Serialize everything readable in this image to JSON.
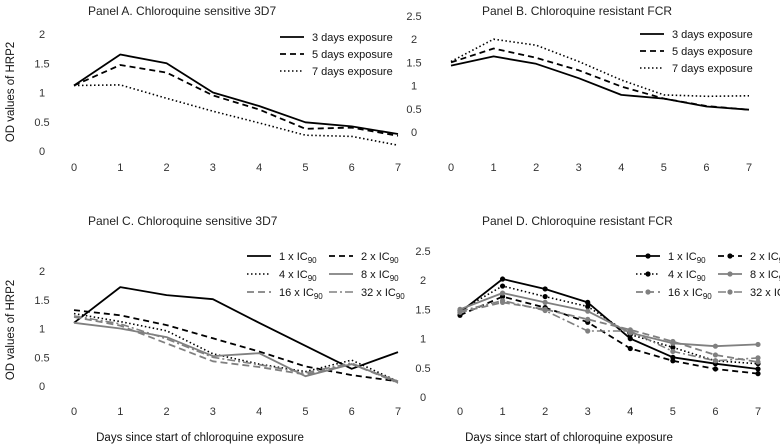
{
  "y_axis_label": "OD values of HRP2",
  "x_axis_label": "Days since start of chloroquine exposure",
  "ic_unit_prefix": " x IC",
  "ic_unit_sub": "90",
  "chart_data": [
    {
      "type": "line",
      "title": "Panel A. Chloroquine sensitive 3D7",
      "xlabel": "",
      "ylabel": "OD values of HRP2",
      "x": [
        0,
        1,
        2,
        3,
        4,
        5,
        6,
        7
      ],
      "ylim": [
        0,
        2
      ],
      "yticks": [
        "0",
        "0.5",
        "1",
        "1.5",
        "2"
      ],
      "series": [
        {
          "name": "3 days exposure",
          "style": "solid",
          "values": [
            1.12,
            1.65,
            1.5,
            1.0,
            0.77,
            0.49,
            0.42,
            0.29
          ]
        },
        {
          "name": "5 days exposure",
          "style": "dash",
          "values": [
            1.12,
            1.47,
            1.34,
            0.95,
            0.71,
            0.38,
            0.4,
            0.26
          ]
        },
        {
          "name": "7 days exposure",
          "style": "dot",
          "values": [
            1.12,
            1.13,
            0.9,
            0.68,
            0.48,
            0.27,
            0.25,
            0.1
          ]
        }
      ]
    },
    {
      "type": "line",
      "title": "Panel B. Chloroquine resistant FCR",
      "xlabel": "",
      "ylabel": "",
      "x": [
        0,
        1,
        2,
        3,
        4,
        5,
        6,
        7
      ],
      "ylim": [
        0,
        2.5
      ],
      "yticks": [
        "0",
        "0.5",
        "1",
        "1.5",
        "2",
        "2.5"
      ],
      "series": [
        {
          "name": "3 days exposure",
          "style": "solid",
          "values": [
            1.43,
            1.63,
            1.47,
            1.16,
            0.8,
            0.72,
            0.55,
            0.48
          ]
        },
        {
          "name": "5 days exposure",
          "style": "dash",
          "values": [
            1.5,
            1.8,
            1.6,
            1.33,
            0.98,
            0.72,
            0.56,
            0.48
          ]
        },
        {
          "name": "7 days exposure",
          "style": "dot",
          "values": [
            1.52,
            2.0,
            1.87,
            1.52,
            1.12,
            0.8,
            0.77,
            0.78
          ]
        }
      ]
    },
    {
      "type": "line",
      "title": "Panel C. Chloroquine sensitive 3D7",
      "xlabel": "Days since start of chloroquine exposure",
      "ylabel": "OD values of HRP2",
      "x": [
        0,
        1,
        2,
        3,
        4,
        5,
        6,
        7
      ],
      "ylim": [
        0,
        2
      ],
      "yticks": [
        "0",
        "0.5",
        "1",
        "1.5",
        "2"
      ],
      "series": [
        {
          "name": "1",
          "style": "solid",
          "marker": "none",
          "values": [
            1.1,
            1.72,
            1.58,
            1.51,
            1.1,
            0.7,
            0.3,
            0.59
          ]
        },
        {
          "name": "2",
          "style": "dash",
          "marker": "none",
          "values": [
            1.32,
            1.23,
            1.06,
            0.83,
            0.6,
            0.34,
            0.19,
            0.08
          ]
        },
        {
          "name": "4",
          "style": "dot",
          "marker": "none",
          "values": [
            1.26,
            1.12,
            0.96,
            0.56,
            0.38,
            0.25,
            0.45,
            0.08
          ]
        },
        {
          "name": "8",
          "style": "solid-gray",
          "marker": "none",
          "values": [
            1.1,
            1.0,
            0.85,
            0.52,
            0.57,
            0.17,
            0.38,
            0.08
          ]
        },
        {
          "name": "16",
          "style": "dash-gray",
          "marker": "none",
          "values": [
            1.2,
            1.05,
            0.74,
            0.43,
            0.33,
            0.2,
            0.38,
            0.06
          ]
        },
        {
          "name": "32",
          "style": "dashdot",
          "marker": "none",
          "values": [
            1.22,
            1.08,
            0.82,
            0.5,
            0.37,
            0.23,
            0.4,
            0.05
          ]
        }
      ]
    },
    {
      "type": "line",
      "title": "Panel D. Chloroquine resistant FCR",
      "xlabel": "Days since start of chloroquine exposure",
      "ylabel": "",
      "x": [
        0,
        1,
        2,
        3,
        4,
        5,
        6,
        7
      ],
      "ylim": [
        0,
        2.5
      ],
      "yticks": [
        "0",
        "0.5",
        "1",
        "1.5",
        "2",
        "2.5"
      ],
      "series": [
        {
          "name": "1",
          "style": "solid",
          "marker": "dot",
          "values": [
            1.45,
            2.02,
            1.85,
            1.62,
            1.0,
            0.68,
            0.57,
            0.48
          ]
        },
        {
          "name": "2",
          "style": "dash",
          "marker": "dot",
          "values": [
            1.4,
            1.72,
            1.53,
            1.28,
            0.83,
            0.62,
            0.48,
            0.4
          ]
        },
        {
          "name": "4",
          "style": "dot",
          "marker": "dot",
          "values": [
            1.48,
            1.9,
            1.72,
            1.55,
            1.07,
            0.85,
            0.62,
            0.57
          ]
        },
        {
          "name": "8",
          "style": "solid-gray",
          "marker": "dot",
          "values": [
            1.5,
            1.78,
            1.62,
            1.47,
            1.1,
            0.92,
            0.87,
            0.9
          ]
        },
        {
          "name": "16",
          "style": "dash-gray",
          "marker": "dot",
          "values": [
            1.45,
            1.62,
            1.5,
            1.33,
            1.15,
            0.95,
            0.72,
            0.6
          ]
        },
        {
          "name": "32",
          "style": "dashdot",
          "marker": "dot",
          "values": [
            1.47,
            1.65,
            1.48,
            1.13,
            1.13,
            0.78,
            0.62,
            0.67
          ]
        }
      ]
    }
  ]
}
